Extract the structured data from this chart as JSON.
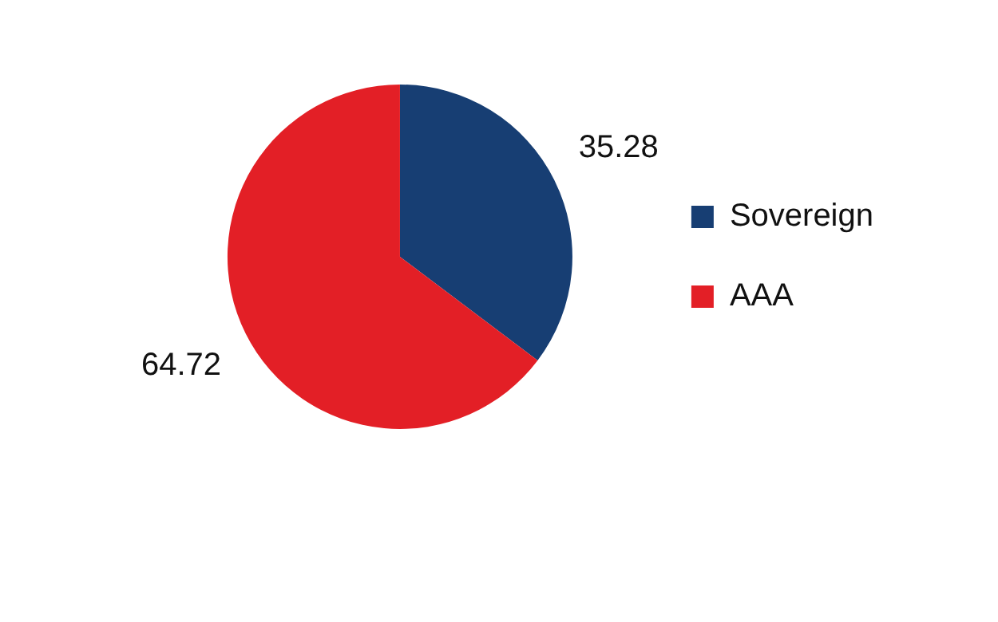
{
  "chart_data": {
    "type": "pie",
    "categories": [
      "Sovereign",
      "AAA"
    ],
    "values": [
      35.28,
      64.72
    ],
    "colors": [
      "#173e73",
      "#e31f26"
    ],
    "legend": "right",
    "data_labels": true
  }
}
